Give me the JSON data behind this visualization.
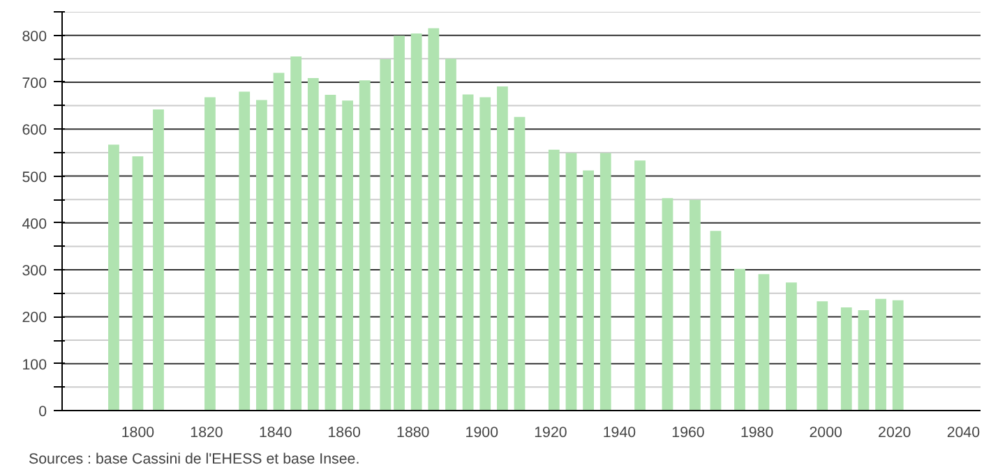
{
  "chart_data": {
    "type": "bar",
    "x": [
      1793,
      1800,
      1806,
      1821,
      1831,
      1836,
      1841,
      1846,
      1851,
      1856,
      1861,
      1866,
      1872,
      1876,
      1881,
      1886,
      1891,
      1896,
      1901,
      1906,
      1911,
      1921,
      1926,
      1931,
      1936,
      1946,
      1954,
      1962,
      1968,
      1975,
      1982,
      1990,
      1999,
      2006,
      2011,
      2016,
      2021
    ],
    "values": [
      567,
      542,
      642,
      668,
      680,
      662,
      720,
      755,
      709,
      673,
      661,
      704,
      749,
      799,
      804,
      815,
      750,
      674,
      668,
      691,
      626,
      556,
      549,
      512,
      549,
      533,
      453,
      449,
      383,
      302,
      291,
      273,
      233,
      220,
      214,
      238,
      235
    ],
    "color": "#b0e3b0",
    "xlim": [
      1778,
      2045
    ],
    "ylim": [
      0,
      850
    ],
    "xticks": [
      1800,
      1820,
      1840,
      1860,
      1880,
      1900,
      1920,
      1940,
      1960,
      1980,
      2000,
      2020,
      2040
    ],
    "yticks": [
      0,
      {
        "value": 50,
        "label": null
      },
      100,
      {
        "value": 150,
        "label": null
      },
      200,
      {
        "value": 250,
        "label": null
      },
      300,
      {
        "value": 350,
        "label": null
      },
      400,
      {
        "value": 450,
        "label": null
      },
      500,
      {
        "value": 550,
        "label": null
      },
      600,
      {
        "value": 650,
        "label": null
      },
      700,
      {
        "value": 750,
        "label": null
      },
      800,
      {
        "value": 850,
        "label": null
      }
    ],
    "grid": "y",
    "annotations": [
      "Sources : base Cassini de l'EHESS et base Insee."
    ]
  }
}
